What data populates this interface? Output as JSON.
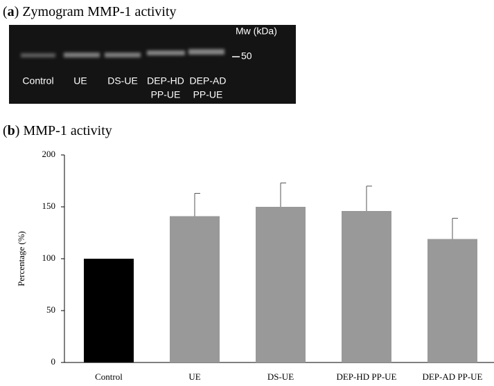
{
  "panel_a": {
    "panel": [
      "(",
      "a",
      ")"
    ],
    "title": "Zymogram MMP-1 activity",
    "mw_label": "Mw (kDa)",
    "marker": "50",
    "lanes": [
      [
        "Control"
      ],
      [
        "UE"
      ],
      [
        "DS-UE"
      ],
      [
        "DEP-HD",
        "PP-UE"
      ],
      [
        "DEP-AD",
        "PP-UE"
      ]
    ]
  },
  "chart_data": {
    "type": "bar",
    "panel": [
      "(",
      "b",
      ")"
    ],
    "title": "MMP-1 activity",
    "y_label": "Percentage (%)",
    "categories": [
      "Control",
      "UE",
      "DS-UE",
      "DEP-HD PP-UE",
      "DEP-AD PP-UE"
    ],
    "values": [
      100,
      141,
      150,
      146,
      119
    ],
    "errors": [
      null,
      22,
      23,
      24,
      20
    ],
    "colors": [
      "#000000",
      "#999999",
      "#999999",
      "#999999",
      "#999999"
    ],
    "ylim": [
      0,
      200
    ],
    "yticks": [
      0,
      50,
      100,
      150,
      200
    ]
  }
}
